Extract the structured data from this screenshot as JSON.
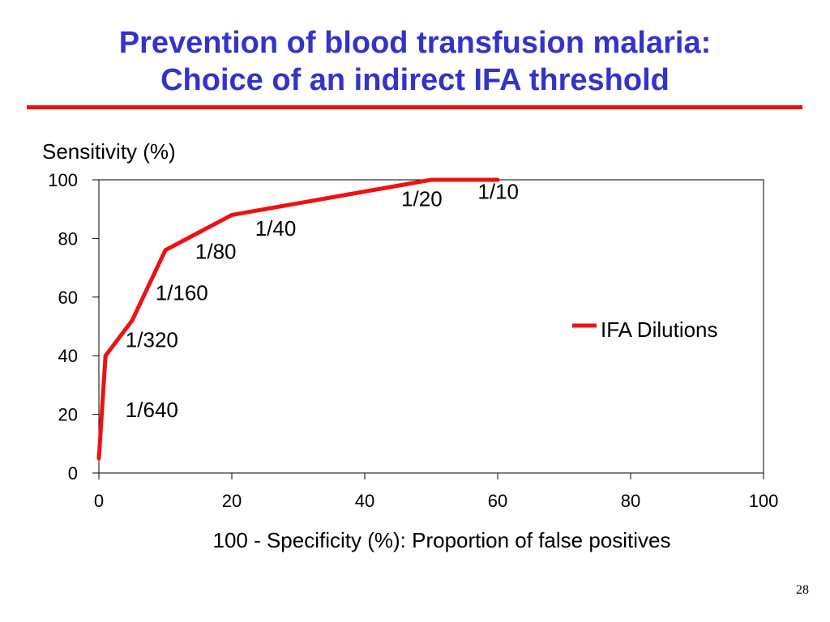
{
  "slide": {
    "title_line1": "Prevention of blood transfusion malaria:",
    "title_line2": "Choice of an indirect IFA threshold",
    "page_number": "28"
  },
  "colors": {
    "title": "#3333cc",
    "rule": "#ee1111",
    "series": "#ee1111"
  },
  "chart_data": {
    "type": "line",
    "title": "",
    "ylabel": "Sensitivity (%)",
    "xlabel": "100 - Specificity (%): Proportion of false positives",
    "xlim": [
      0,
      100
    ],
    "ylim": [
      0,
      100
    ],
    "xticks": [
      0,
      20,
      40,
      60,
      80,
      100
    ],
    "yticks": [
      0,
      20,
      40,
      60,
      80,
      100
    ],
    "grid": false,
    "legend": "right",
    "series": [
      {
        "name": "IFA Dilutions",
        "x": [
          0,
          1,
          5,
          10,
          20,
          50,
          60
        ],
        "y": [
          5,
          40,
          52,
          76,
          88,
          100,
          100
        ]
      }
    ],
    "annotations": [
      {
        "text": "1/640",
        "x": 4,
        "y": 19
      },
      {
        "text": "1/320",
        "x": 4,
        "y": 43
      },
      {
        "text": "1/160",
        "x": 8.5,
        "y": 59
      },
      {
        "text": "1/80",
        "x": 14.5,
        "y": 73
      },
      {
        "text": "1/40",
        "x": 23.5,
        "y": 81
      },
      {
        "text": "1/20",
        "x": 45.5,
        "y": 91
      },
      {
        "text": "1/10",
        "x": 57,
        "y": 93.5
      }
    ]
  }
}
